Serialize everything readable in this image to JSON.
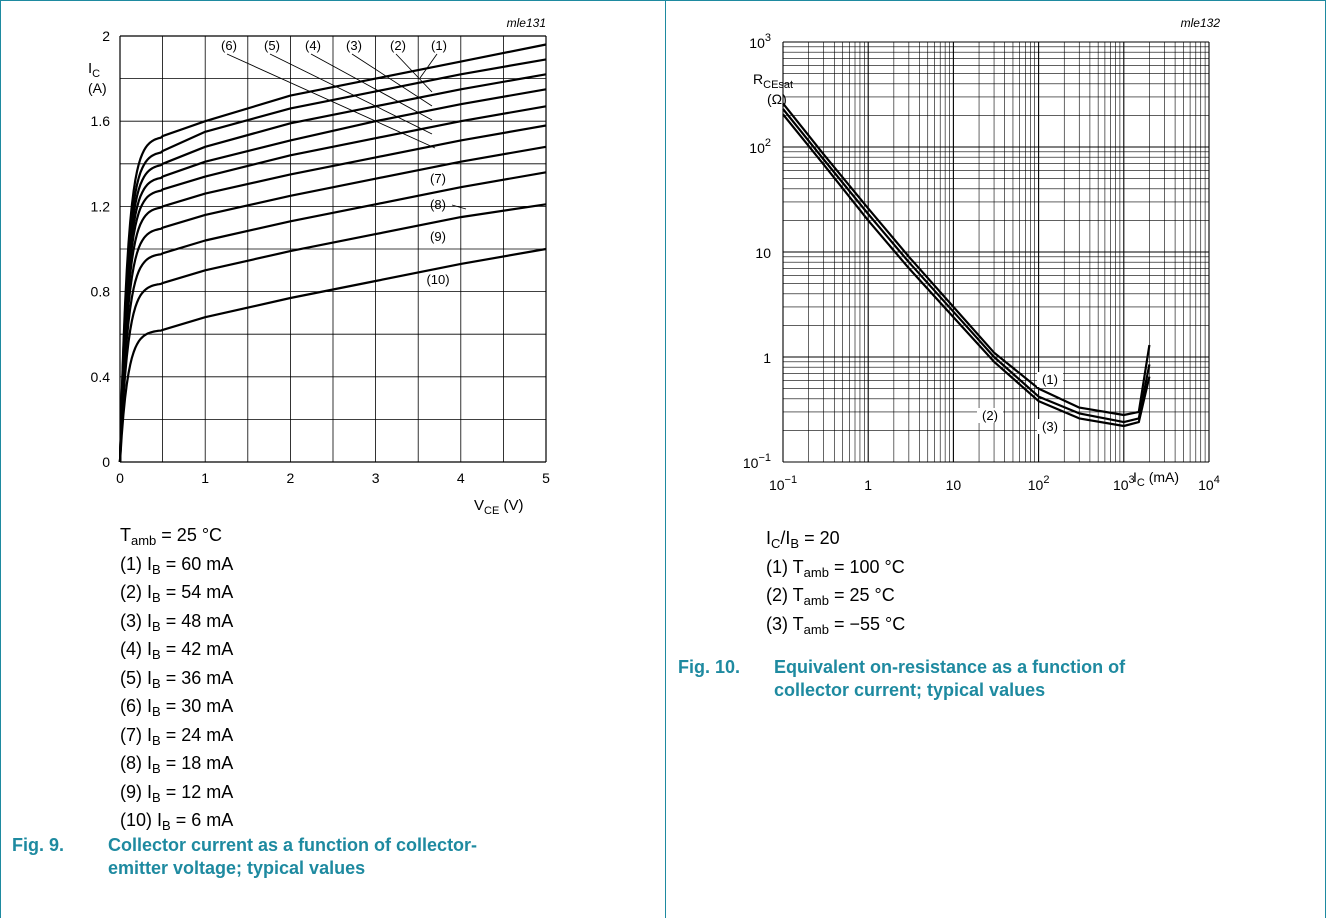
{
  "colors": {
    "accent": "#1e8aa0",
    "grid": "#000000",
    "curve": "#000000"
  },
  "fig9": {
    "tag": "mle131",
    "y_axis_label": {
      "main": "I",
      "sub": "C",
      "unit": "(A)"
    },
    "x_axis_label": {
      "main": "V",
      "sub": "CE",
      "unit": "(V)"
    },
    "y_ticks": [
      "0",
      "0.4",
      "0.8",
      "1.2",
      "1.6",
      "2"
    ],
    "x_ticks": [
      "0",
      "1",
      "2",
      "3",
      "4",
      "5"
    ],
    "curve_labels": [
      "(1)",
      "(2)",
      "(3)",
      "(4)",
      "(5)",
      "(6)",
      "(7)",
      "(8)",
      "(9)",
      "(10)"
    ],
    "conditions": {
      "temp": {
        "main": "T",
        "sub": "amb",
        "rest": " = 25 °C"
      },
      "items": [
        {
          "prefix": "(1) I",
          "sub": "B",
          "rest": " = 60 mA"
        },
        {
          "prefix": "(2) I",
          "sub": "B",
          "rest": " = 54 mA"
        },
        {
          "prefix": "(3) I",
          "sub": "B",
          "rest": " = 48 mA"
        },
        {
          "prefix": "(4) I",
          "sub": "B",
          "rest": " = 42 mA"
        },
        {
          "prefix": "(5) I",
          "sub": "B",
          "rest": " = 36 mA"
        },
        {
          "prefix": "(6) I",
          "sub": "B",
          "rest": " = 30 mA"
        },
        {
          "prefix": "(7) I",
          "sub": "B",
          "rest": " = 24 mA"
        },
        {
          "prefix": "(8) I",
          "sub": "B",
          "rest": " = 18 mA"
        },
        {
          "prefix": "(9) I",
          "sub": "B",
          "rest": " = 12 mA"
        },
        {
          "prefix": "(10) I",
          "sub": "B",
          "rest": " = 6 mA"
        }
      ]
    },
    "caption": {
      "number": "Fig. 9.",
      "line1": "Collector current as a function of collector-",
      "line2": "emitter voltage; typical values"
    }
  },
  "fig10": {
    "tag": "mle132",
    "y_axis_label": {
      "main": "R",
      "sub": "CEsat",
      "unit": "(Ω)"
    },
    "x_axis_label": {
      "main": "I",
      "sub": "C",
      "unit": " (mA)"
    },
    "y_ticks": [
      {
        "base": "10",
        "exp": "−1"
      },
      {
        "base": "1",
        "exp": ""
      },
      {
        "base": "10",
        "exp": ""
      },
      {
        "base": "10",
        "exp": "2"
      },
      {
        "base": "10",
        "exp": "3"
      }
    ],
    "x_ticks": [
      {
        "base": "10",
        "exp": "−1"
      },
      {
        "base": "1",
        "exp": ""
      },
      {
        "base": "10",
        "exp": ""
      },
      {
        "base": "10",
        "exp": "2"
      },
      {
        "base": "10",
        "exp": "3"
      },
      {
        "base": "10",
        "exp": "4"
      }
    ],
    "curve_labels": [
      "(1)",
      "(2)",
      "(3)"
    ],
    "conditions": {
      "ratio": {
        "a": "I",
        "a_sub": "C",
        "b": "/I",
        "b_sub": "B",
        "rest": " = 20"
      },
      "items": [
        {
          "prefix": "(1) T",
          "sub": "amb",
          "rest": " = 100 °C"
        },
        {
          "prefix": "(2) T",
          "sub": "amb",
          "rest": " = 25 °C"
        },
        {
          "prefix": "(3) T",
          "sub": "amb",
          "rest": " = −55 °C"
        }
      ]
    },
    "caption": {
      "number": "Fig. 10.",
      "line1": "Equivalent on-resistance as a function of",
      "line2": "collector current; typical values"
    }
  },
  "chart_data": [
    {
      "type": "line",
      "title": "Collector current as a function of collector-emitter voltage; typical values",
      "xlabel": "VCE (V)",
      "ylabel": "IC (A)",
      "xlim": [
        0,
        5
      ],
      "ylim": [
        0,
        2
      ],
      "grid": true,
      "x": [
        0,
        0.5,
        1,
        2,
        3,
        4,
        5
      ],
      "series": [
        {
          "name": "(1)",
          "values": [
            0,
            1.53,
            1.6,
            1.72,
            1.8,
            1.88,
            1.96
          ]
        },
        {
          "name": "(2)",
          "values": [
            0,
            1.46,
            1.55,
            1.66,
            1.74,
            1.82,
            1.89
          ]
        },
        {
          "name": "(3)",
          "values": [
            0,
            1.4,
            1.48,
            1.59,
            1.67,
            1.75,
            1.82
          ]
        },
        {
          "name": "(4)",
          "values": [
            0,
            1.34,
            1.41,
            1.51,
            1.6,
            1.68,
            1.75
          ]
        },
        {
          "name": "(5)",
          "values": [
            0,
            1.28,
            1.34,
            1.44,
            1.52,
            1.6,
            1.67
          ]
        },
        {
          "name": "(6)",
          "values": [
            0,
            1.2,
            1.26,
            1.35,
            1.43,
            1.51,
            1.58
          ]
        },
        {
          "name": "(7)",
          "values": [
            0,
            1.1,
            1.16,
            1.25,
            1.33,
            1.41,
            1.48
          ]
        },
        {
          "name": "(8)",
          "values": [
            0,
            0.98,
            1.04,
            1.13,
            1.21,
            1.29,
            1.36
          ]
        },
        {
          "name": "(9)",
          "values": [
            0,
            0.84,
            0.9,
            0.99,
            1.07,
            1.15,
            1.21
          ]
        },
        {
          "name": "(10)",
          "values": [
            0,
            0.62,
            0.68,
            0.77,
            0.85,
            0.93,
            1.0
          ]
        }
      ]
    },
    {
      "type": "line",
      "title": "Equivalent on-resistance as a function of collector current; typical values",
      "xlabel": "IC (mA)",
      "ylabel": "RCEsat (Ω)",
      "xscale": "log",
      "yscale": "log",
      "xlim": [
        0.1,
        10000
      ],
      "ylim": [
        0.1,
        1000
      ],
      "grid": true,
      "x": [
        0.1,
        0.3,
        1,
        3,
        10,
        30,
        100,
        300,
        1000,
        1500,
        2000
      ],
      "series": [
        {
          "name": "(1)",
          "values": [
            260,
            85,
            26,
            9,
            3,
            1.1,
            0.5,
            0.33,
            0.28,
            0.3,
            1.3
          ]
        },
        {
          "name": "(2)",
          "values": [
            230,
            76,
            23,
            8,
            2.7,
            1.0,
            0.42,
            0.29,
            0.24,
            0.26,
            0.85
          ]
        },
        {
          "name": "(3)",
          "values": [
            205,
            68,
            20,
            7,
            2.4,
            0.9,
            0.38,
            0.26,
            0.22,
            0.24,
            0.65
          ]
        }
      ]
    }
  ]
}
